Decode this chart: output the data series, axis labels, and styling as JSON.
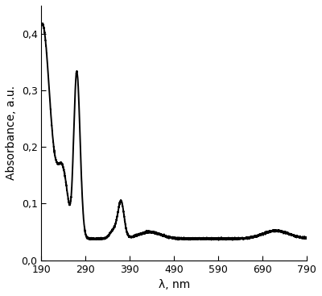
{
  "title": "",
  "xlabel": "λ, nm",
  "ylabel": "Absorbance, a.u.",
  "xlim": [
    190,
    790
  ],
  "ylim": [
    0.0,
    0.45
  ],
  "xticks": [
    190,
    290,
    390,
    490,
    590,
    690,
    790
  ],
  "yticks": [
    0.0,
    0.1,
    0.2,
    0.3,
    0.4
  ],
  "ytick_labels": [
    "0,0",
    "0,1",
    "0,2",
    "0,3",
    "0,4"
  ],
  "xtick_labels": [
    "190",
    "290",
    "390",
    "490",
    "590",
    "690",
    "790"
  ],
  "line_color": "#000000",
  "line_width": 1.4,
  "background_color": "#ffffff",
  "figsize": [
    4.0,
    3.67
  ],
  "dpi": 100
}
